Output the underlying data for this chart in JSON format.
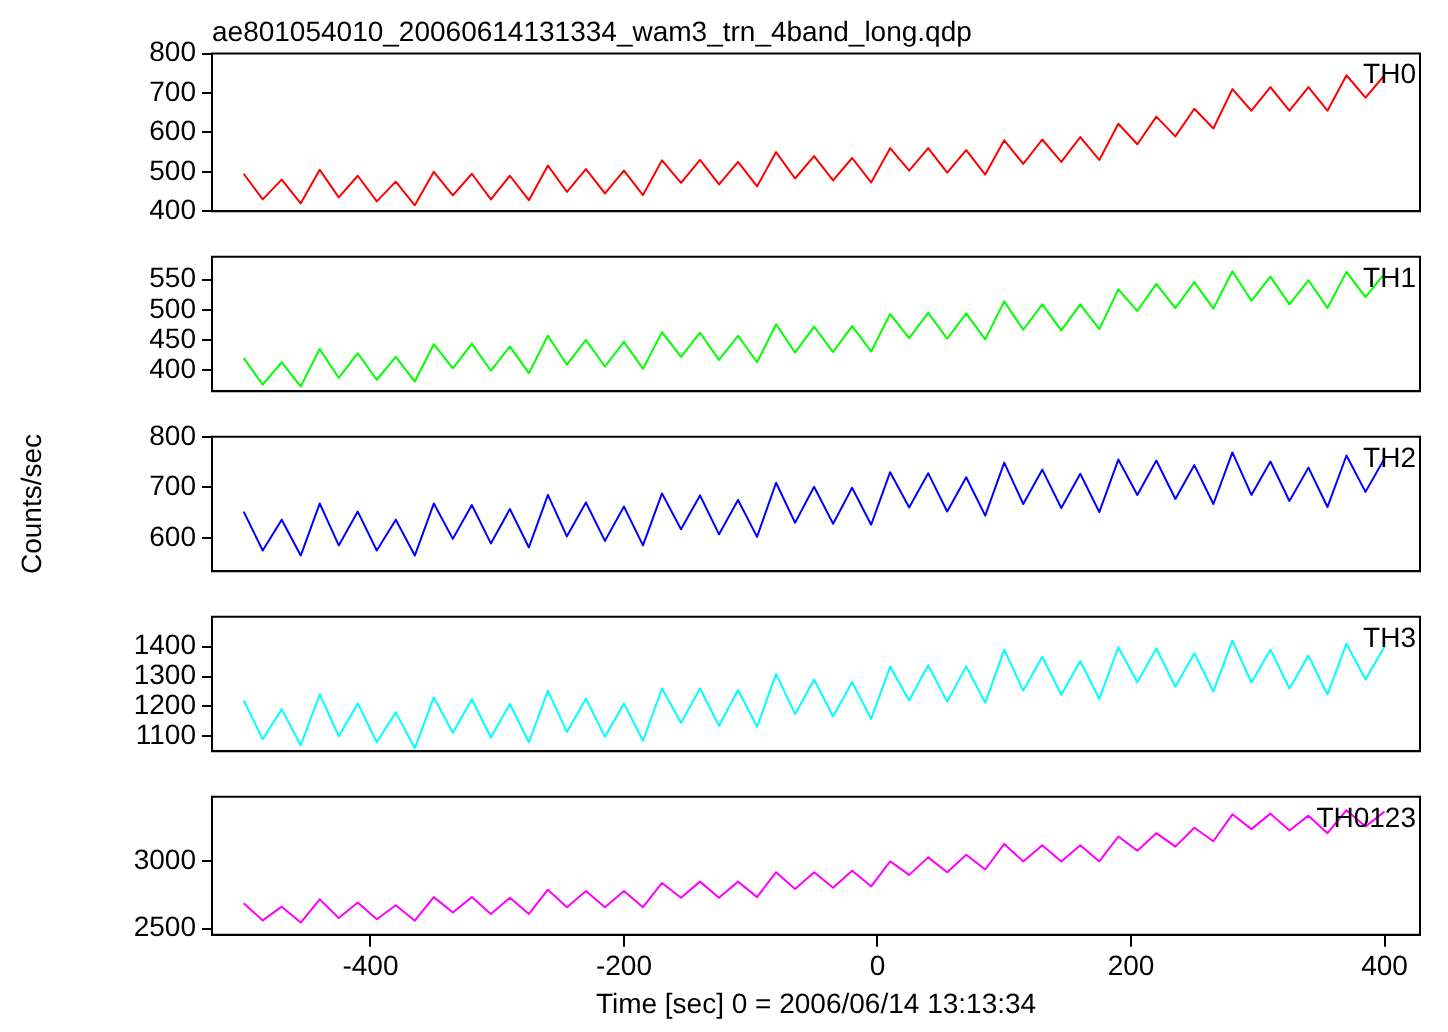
{
  "chart_data": [
    {
      "type": "line",
      "title": "ae801054010_20060614131334_wam3_trn_4band_long.qdp",
      "tick_labels": "y",
      "x": [
        -500,
        -485,
        -470,
        -455,
        -440,
        -425,
        -410,
        -395,
        -380,
        -365,
        -350,
        -335,
        -320,
        -305,
        -290,
        -275,
        -260,
        -245,
        -230,
        -215,
        -200,
        -185,
        -170,
        -155,
        -140,
        -125,
        -110,
        -95,
        -80,
        -65,
        -50,
        -35,
        -20,
        -5,
        10,
        25,
        40,
        55,
        70,
        85,
        100,
        115,
        130,
        145,
        160,
        175,
        190,
        205,
        220,
        235,
        250,
        265,
        280,
        295,
        310,
        325,
        340,
        355,
        370,
        385,
        400
      ],
      "xlim": [
        -525,
        428
      ],
      "xticks": [
        -400,
        -200,
        0,
        200,
        400
      ],
      "ylim": [
        400,
        800
      ],
      "yticks": [
        400,
        500,
        600,
        700,
        800
      ],
      "series": [
        {
          "name": "TH0",
          "color": "#ff0000",
          "values": [
            495,
            430,
            480,
            420,
            505,
            435,
            490,
            425,
            475,
            415,
            500,
            440,
            495,
            430,
            490,
            428,
            516,
            449,
            507,
            445,
            503,
            441,
            529,
            472,
            530,
            468,
            525,
            463,
            550,
            483,
            540,
            478,
            535,
            473,
            560,
            503,
            560,
            498,
            555,
            493,
            580,
            520,
            582,
            525,
            588,
            530,
            622,
            570,
            640,
            590,
            660,
            610,
            710,
            655,
            715,
            655,
            715,
            655,
            745,
            688,
            745
          ]
        }
      ]
    },
    {
      "type": "line",
      "tick_labels": "y",
      "x": [
        -500,
        -485,
        -470,
        -455,
        -440,
        -425,
        -410,
        -395,
        -380,
        -365,
        -350,
        -335,
        -320,
        -305,
        -290,
        -275,
        -260,
        -245,
        -230,
        -215,
        -200,
        -185,
        -170,
        -155,
        -140,
        -125,
        -110,
        -95,
        -80,
        -65,
        -50,
        -35,
        -20,
        -5,
        10,
        25,
        40,
        55,
        70,
        85,
        100,
        115,
        130,
        145,
        160,
        175,
        190,
        205,
        220,
        235,
        250,
        265,
        280,
        295,
        310,
        325,
        340,
        355,
        370,
        385,
        400
      ],
      "xlim": [
        -525,
        428
      ],
      "xticks": [
        -400,
        -200,
        0,
        200,
        400
      ],
      "ylim": [
        365,
        588
      ],
      "yticks": [
        400,
        450,
        500,
        550
      ],
      "series": [
        {
          "name": "TH1",
          "color": "#00ff00",
          "values": [
            420,
            376,
            413,
            373,
            435,
            387,
            428,
            384,
            422,
            381,
            443,
            403,
            444,
            399,
            439,
            395,
            457,
            409,
            450,
            406,
            447,
            402,
            463,
            422,
            462,
            417,
            457,
            413,
            476,
            429,
            472,
            430,
            473,
            431,
            493,
            453,
            495,
            452,
            494,
            451,
            514,
            467,
            509,
            466,
            509,
            468,
            534,
            498,
            543,
            503,
            546,
            502,
            564,
            515,
            555,
            509,
            549,
            503,
            563,
            521,
            560
          ]
        }
      ]
    },
    {
      "type": "line",
      "tick_labels": "y",
      "ylabel": "Counts/sec",
      "x": [
        -500,
        -485,
        -470,
        -455,
        -440,
        -425,
        -410,
        -395,
        -380,
        -365,
        -350,
        -335,
        -320,
        -305,
        -290,
        -275,
        -260,
        -245,
        -230,
        -215,
        -200,
        -185,
        -170,
        -155,
        -140,
        -125,
        -110,
        -95,
        -80,
        -65,
        -50,
        -35,
        -20,
        -5,
        10,
        25,
        40,
        55,
        70,
        85,
        100,
        115,
        130,
        145,
        160,
        175,
        190,
        205,
        220,
        235,
        250,
        265,
        280,
        295,
        310,
        325,
        340,
        355,
        370,
        385,
        400
      ],
      "xlim": [
        -525,
        428
      ],
      "xticks": [
        -400,
        -200,
        0,
        200,
        400
      ],
      "ylim": [
        534,
        800
      ],
      "yticks": [
        600,
        700,
        800
      ],
      "series": [
        {
          "name": "TH2",
          "color": "#0000ff",
          "values": [
            652,
            575,
            636,
            565,
            668,
            585,
            652,
            575,
            636,
            565,
            668,
            598,
            665,
            589,
            657,
            581,
            685,
            603,
            670,
            594,
            662,
            585,
            688,
            617,
            684,
            607,
            675,
            602,
            709,
            630,
            701,
            628,
            699,
            626,
            730,
            660,
            728,
            652,
            720,
            644,
            749,
            667,
            735,
            659,
            727,
            651,
            755,
            685,
            753,
            677,
            744,
            667,
            769,
            685,
            751,
            673,
            739,
            661,
            763,
            691,
            757
          ]
        }
      ]
    },
    {
      "type": "line",
      "tick_labels": "y",
      "x": [
        -500,
        -485,
        -470,
        -455,
        -440,
        -425,
        -410,
        -395,
        -380,
        -365,
        -350,
        -335,
        -320,
        -305,
        -290,
        -275,
        -260,
        -245,
        -230,
        -215,
        -200,
        -185,
        -170,
        -155,
        -140,
        -125,
        -110,
        -95,
        -80,
        -65,
        -50,
        -35,
        -20,
        -5,
        10,
        25,
        40,
        55,
        70,
        85,
        100,
        115,
        130,
        145,
        160,
        175,
        190,
        205,
        220,
        235,
        250,
        265,
        280,
        295,
        310,
        325,
        340,
        355,
        370,
        385,
        400
      ],
      "xlim": [
        -525,
        428
      ],
      "xticks": [
        -400,
        -200,
        0,
        200,
        400
      ],
      "ylim": [
        1050,
        1500
      ],
      "yticks": [
        1100,
        1200,
        1300,
        1400
      ],
      "series": [
        {
          "name": "TH3",
          "color": "#00ffff",
          "values": [
            1220,
            1090,
            1190,
            1070,
            1240,
            1100,
            1210,
            1080,
            1180,
            1060,
            1230,
            1112,
            1224,
            1096,
            1208,
            1080,
            1252,
            1114,
            1226,
            1098,
            1210,
            1085,
            1260,
            1145,
            1260,
            1135,
            1255,
            1132,
            1308,
            1174,
            1290,
            1166,
            1282,
            1158,
            1333,
            1220,
            1338,
            1216,
            1334,
            1212,
            1390,
            1253,
            1366,
            1239,
            1352,
            1225,
            1398,
            1281,
            1394,
            1266,
            1378,
            1250,
            1420,
            1280,
            1390,
            1260,
            1370,
            1240,
            1410,
            1290,
            1400
          ]
        }
      ]
    },
    {
      "type": "line",
      "xlabel": "Time [sec] 0 = 2006/06/14 13:13:34",
      "x": [
        -500,
        -485,
        -470,
        -455,
        -440,
        -425,
        -410,
        -395,
        -380,
        -365,
        -350,
        -335,
        -320,
        -305,
        -290,
        -275,
        -260,
        -245,
        -230,
        -215,
        -200,
        -185,
        -170,
        -155,
        -140,
        -125,
        -110,
        -95,
        -80,
        -65,
        -50,
        -35,
        -20,
        -5,
        10,
        25,
        40,
        55,
        70,
        85,
        100,
        115,
        130,
        145,
        160,
        175,
        190,
        205,
        220,
        235,
        250,
        265,
        280,
        295,
        310,
        325,
        340,
        355,
        370,
        385,
        400
      ],
      "xlim": [
        -525,
        428
      ],
      "xticks": [
        -400,
        -200,
        0,
        200,
        400
      ],
      "ylim": [
        2455,
        3480
      ],
      "yticks": [
        2500,
        3000
      ],
      "series": [
        {
          "name": "TH0123",
          "color": "#ff00ff",
          "values": [
            2690,
            2562,
            2664,
            2546,
            2718,
            2580,
            2695,
            2570,
            2675,
            2560,
            2735,
            2620,
            2735,
            2610,
            2730,
            2610,
            2790,
            2660,
            2780,
            2660,
            2780,
            2660,
            2840,
            2730,
            2850,
            2730,
            2850,
            2735,
            2920,
            2795,
            2920,
            2805,
            2930,
            2815,
            3000,
            2900,
            3030,
            2920,
            3050,
            2940,
            3130,
            3000,
            3120,
            3000,
            3120,
            3000,
            3185,
            3080,
            3210,
            3110,
            3250,
            3150,
            3350,
            3240,
            3355,
            3230,
            3340,
            3210,
            3380,
            3260,
            3370
          ]
        }
      ]
    }
  ]
}
